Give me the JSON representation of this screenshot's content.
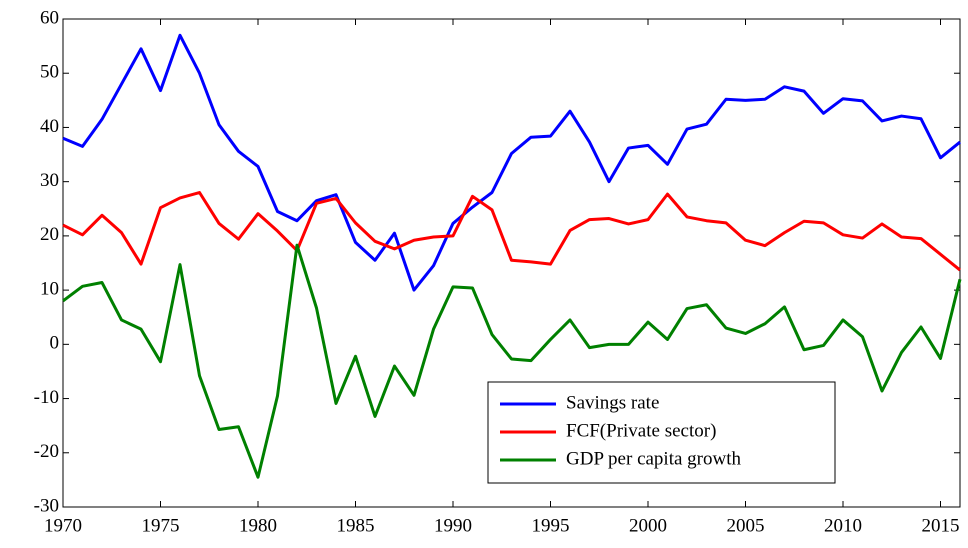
{
  "chart_data": {
    "type": "line",
    "x": [
      1970,
      1971,
      1972,
      1973,
      1974,
      1975,
      1976,
      1977,
      1978,
      1979,
      1980,
      1981,
      1982,
      1983,
      1984,
      1985,
      1986,
      1987,
      1988,
      1989,
      1990,
      1991,
      1992,
      1993,
      1994,
      1995,
      1996,
      1997,
      1998,
      1999,
      2000,
      2001,
      2002,
      2003,
      2004,
      2005,
      2006,
      2007,
      2008,
      2009,
      2010,
      2011,
      2012,
      2013,
      2014,
      2015,
      2016
    ],
    "series": [
      {
        "name": "Savings rate",
        "color": "#0000ff",
        "values": [
          38,
          36.5,
          41.5,
          48,
          54.5,
          46.8,
          57,
          50,
          40.5,
          35.6,
          32.8,
          24.5,
          22.8,
          26.5,
          27.6,
          18.8,
          15.5,
          20.5,
          10,
          14.5,
          22.3,
          25.3,
          28,
          35.2,
          38.2,
          38.4,
          43,
          37.3,
          30,
          36.2,
          36.7,
          33.2,
          39.7,
          40.6,
          45.2,
          45,
          45.2,
          47.5,
          46.7,
          42.6,
          45.3,
          44.9,
          41.2,
          42.1,
          41.6,
          34.4,
          37.3
        ]
      },
      {
        "name": "FCF(Private sector)",
        "color": "#ff0000",
        "values": [
          22,
          20.2,
          23.8,
          20.6,
          14.8,
          25.2,
          27,
          28,
          22.3,
          19.4,
          24.1,
          20.9,
          17.3,
          26,
          26.9,
          22.4,
          19,
          17.6,
          19.2,
          19.8,
          20,
          27.3,
          24.8,
          15.5,
          15.2,
          14.8,
          21,
          23,
          23.2,
          22.2,
          23,
          27.7,
          23.5,
          22.8,
          22.4,
          19.2,
          18.2,
          20.6,
          22.7,
          22.4,
          20.2,
          19.6,
          22.2,
          19.8,
          19.5,
          16.6,
          13.7
        ]
      },
      {
        "name": "GDP per capita growth",
        "color": "#008000",
        "values": [
          8,
          10.7,
          11.4,
          4.5,
          2.8,
          -3.2,
          14.7,
          -5.8,
          -15.7,
          -15.2,
          -24.5,
          -9.5,
          18.3,
          6.7,
          -10.9,
          -2.2,
          -13.3,
          -4,
          -9.4,
          2.8,
          10.6,
          10.4,
          1.8,
          -2.7,
          -3,
          0.9,
          4.5,
          -0.6,
          0,
          0,
          4.1,
          0.9,
          6.6,
          7.3,
          3,
          2,
          3.8,
          6.9,
          -1,
          -0.2,
          4.5,
          1.4,
          -8.6,
          -1.5,
          3.2,
          -2.6,
          12
        ]
      }
    ],
    "xlim": [
      1970,
      2016
    ],
    "xticks": [
      1970,
      1975,
      1980,
      1985,
      1990,
      1995,
      2000,
      2005,
      2010,
      2015
    ],
    "ylim": [
      -30,
      60
    ],
    "yticks": [
      -30,
      -20,
      -10,
      0,
      10,
      20,
      30,
      40,
      50,
      60
    ],
    "legend": "lower-right"
  }
}
